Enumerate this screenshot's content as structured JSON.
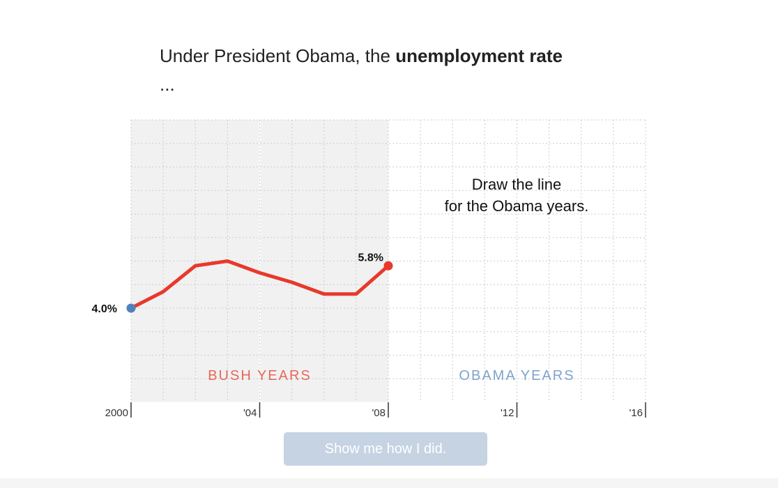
{
  "title": {
    "prefix": "Under President Obama, the ",
    "bold": "unemployment rate",
    "suffix": " ..."
  },
  "button_label": "Show me how I did.",
  "chart_data": {
    "type": "line",
    "title": "Under President Obama, the unemployment rate ...",
    "x": [
      2000,
      2001,
      2002,
      2003,
      2004,
      2005,
      2006,
      2007,
      2008
    ],
    "values": [
      4.0,
      4.7,
      5.8,
      6.0,
      5.5,
      5.1,
      4.6,
      4.6,
      5.8
    ],
    "xlim": [
      2000,
      2016
    ],
    "ylim": [
      0,
      12
    ],
    "grid": true,
    "x_ticks": [
      {
        "value": 2000,
        "label": "2000"
      },
      {
        "value": 2004,
        "label": "'04"
      },
      {
        "value": 2008,
        "label": "'08"
      },
      {
        "value": 2012,
        "label": "'12"
      },
      {
        "value": 2016,
        "label": "'16"
      }
    ],
    "start_label": "4.0%",
    "end_label": "5.8%",
    "regions": [
      {
        "label": "BUSH YEARS",
        "from": 2000,
        "to": 2008,
        "color": "#e8675a"
      },
      {
        "label": "OBAMA YEARS",
        "from": 2008,
        "to": 2016,
        "color": "#7fa3cc"
      }
    ],
    "annotation": [
      "Draw the line",
      "for the Obama years."
    ],
    "colors": {
      "line": "#e8392b",
      "start_dot": "#4f81bd",
      "shade": "#f1f1f1"
    }
  }
}
